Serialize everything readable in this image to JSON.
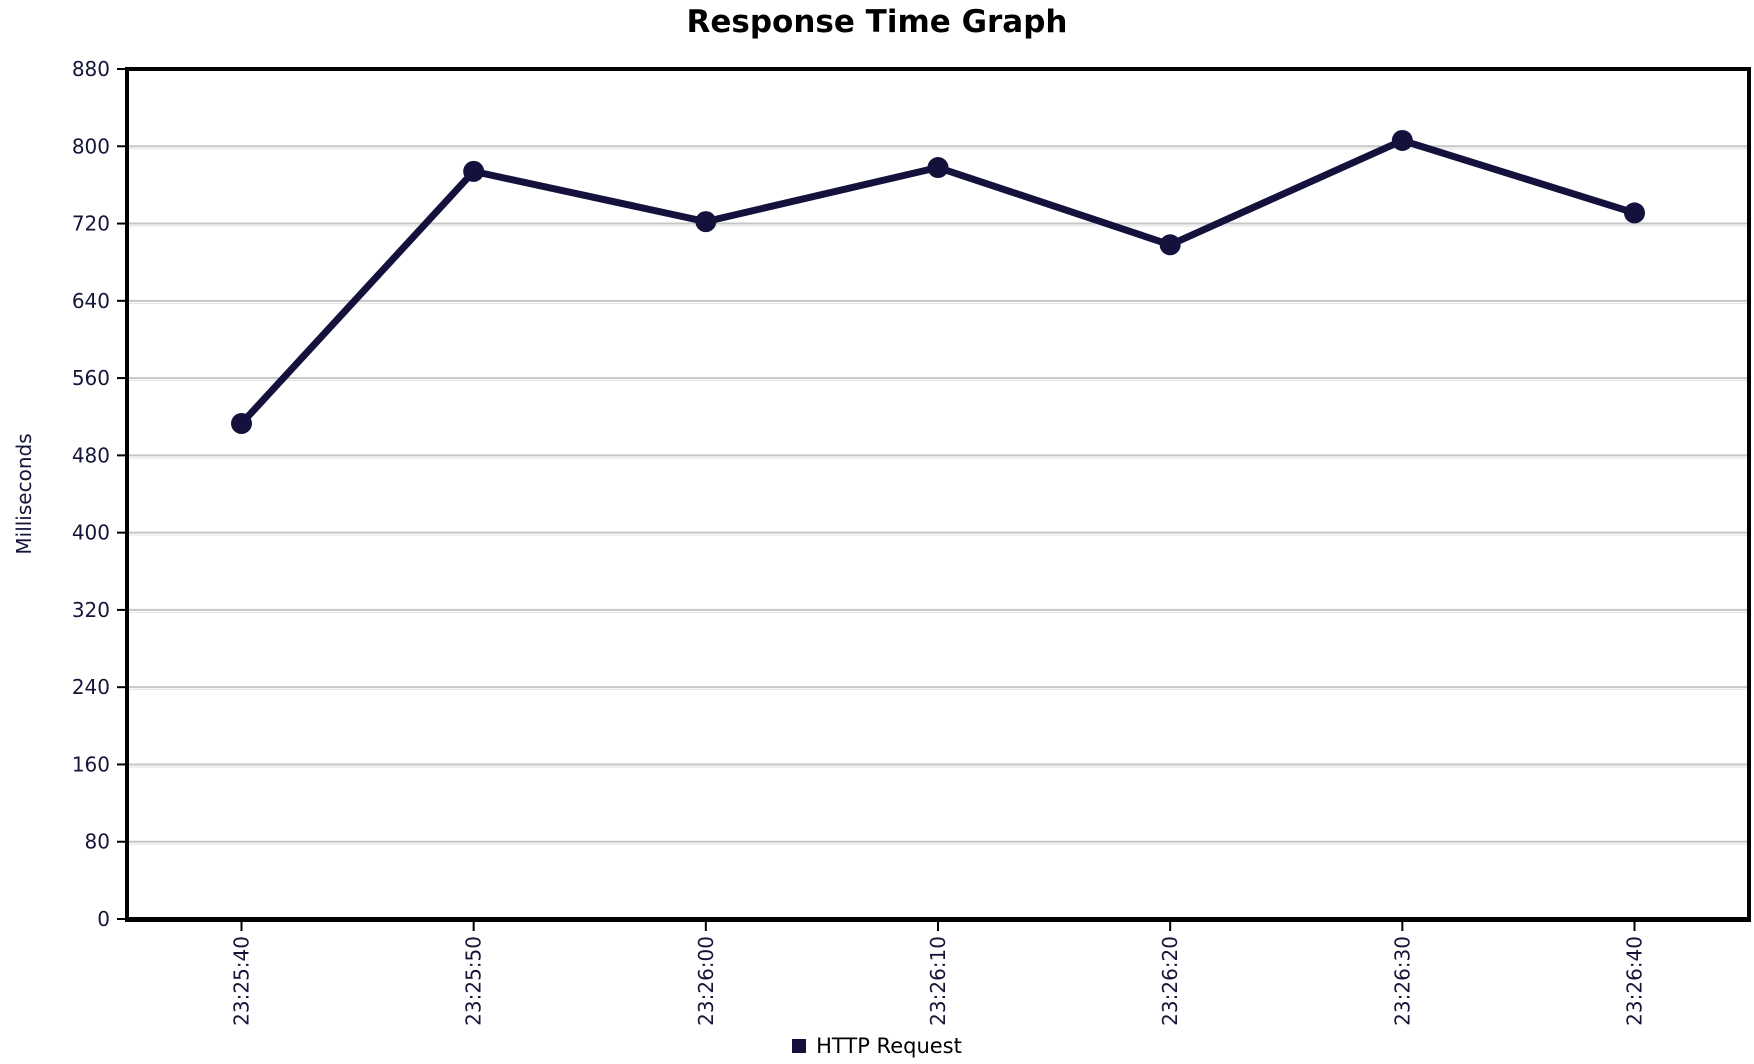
{
  "chart_data": {
    "type": "line",
    "title": "Response Time Graph",
    "ylabel": "Milliseconds",
    "xlabel": "",
    "x": [
      "23:25:40",
      "23:25:50",
      "23:26:00",
      "23:26:10",
      "23:26:20",
      "23:26:30",
      "23:26:40"
    ],
    "series": [
      {
        "name": "HTTP Request",
        "values": [
          513,
          774,
          722,
          778,
          698,
          806,
          731
        ],
        "color": "#14123c"
      }
    ],
    "ylim": [
      0,
      880
    ],
    "ytick_step": 80,
    "yticks": [
      0,
      80,
      160,
      240,
      320,
      400,
      480,
      560,
      640,
      720,
      800,
      880
    ],
    "grid": "horizontal",
    "legend_position": "bottom",
    "colors": {
      "axis": "#000000",
      "gridline": "#c6c6c6",
      "gridline_shadow": "#e2e2e2",
      "tick_label": "#15153a",
      "background": "#ffffff"
    }
  }
}
